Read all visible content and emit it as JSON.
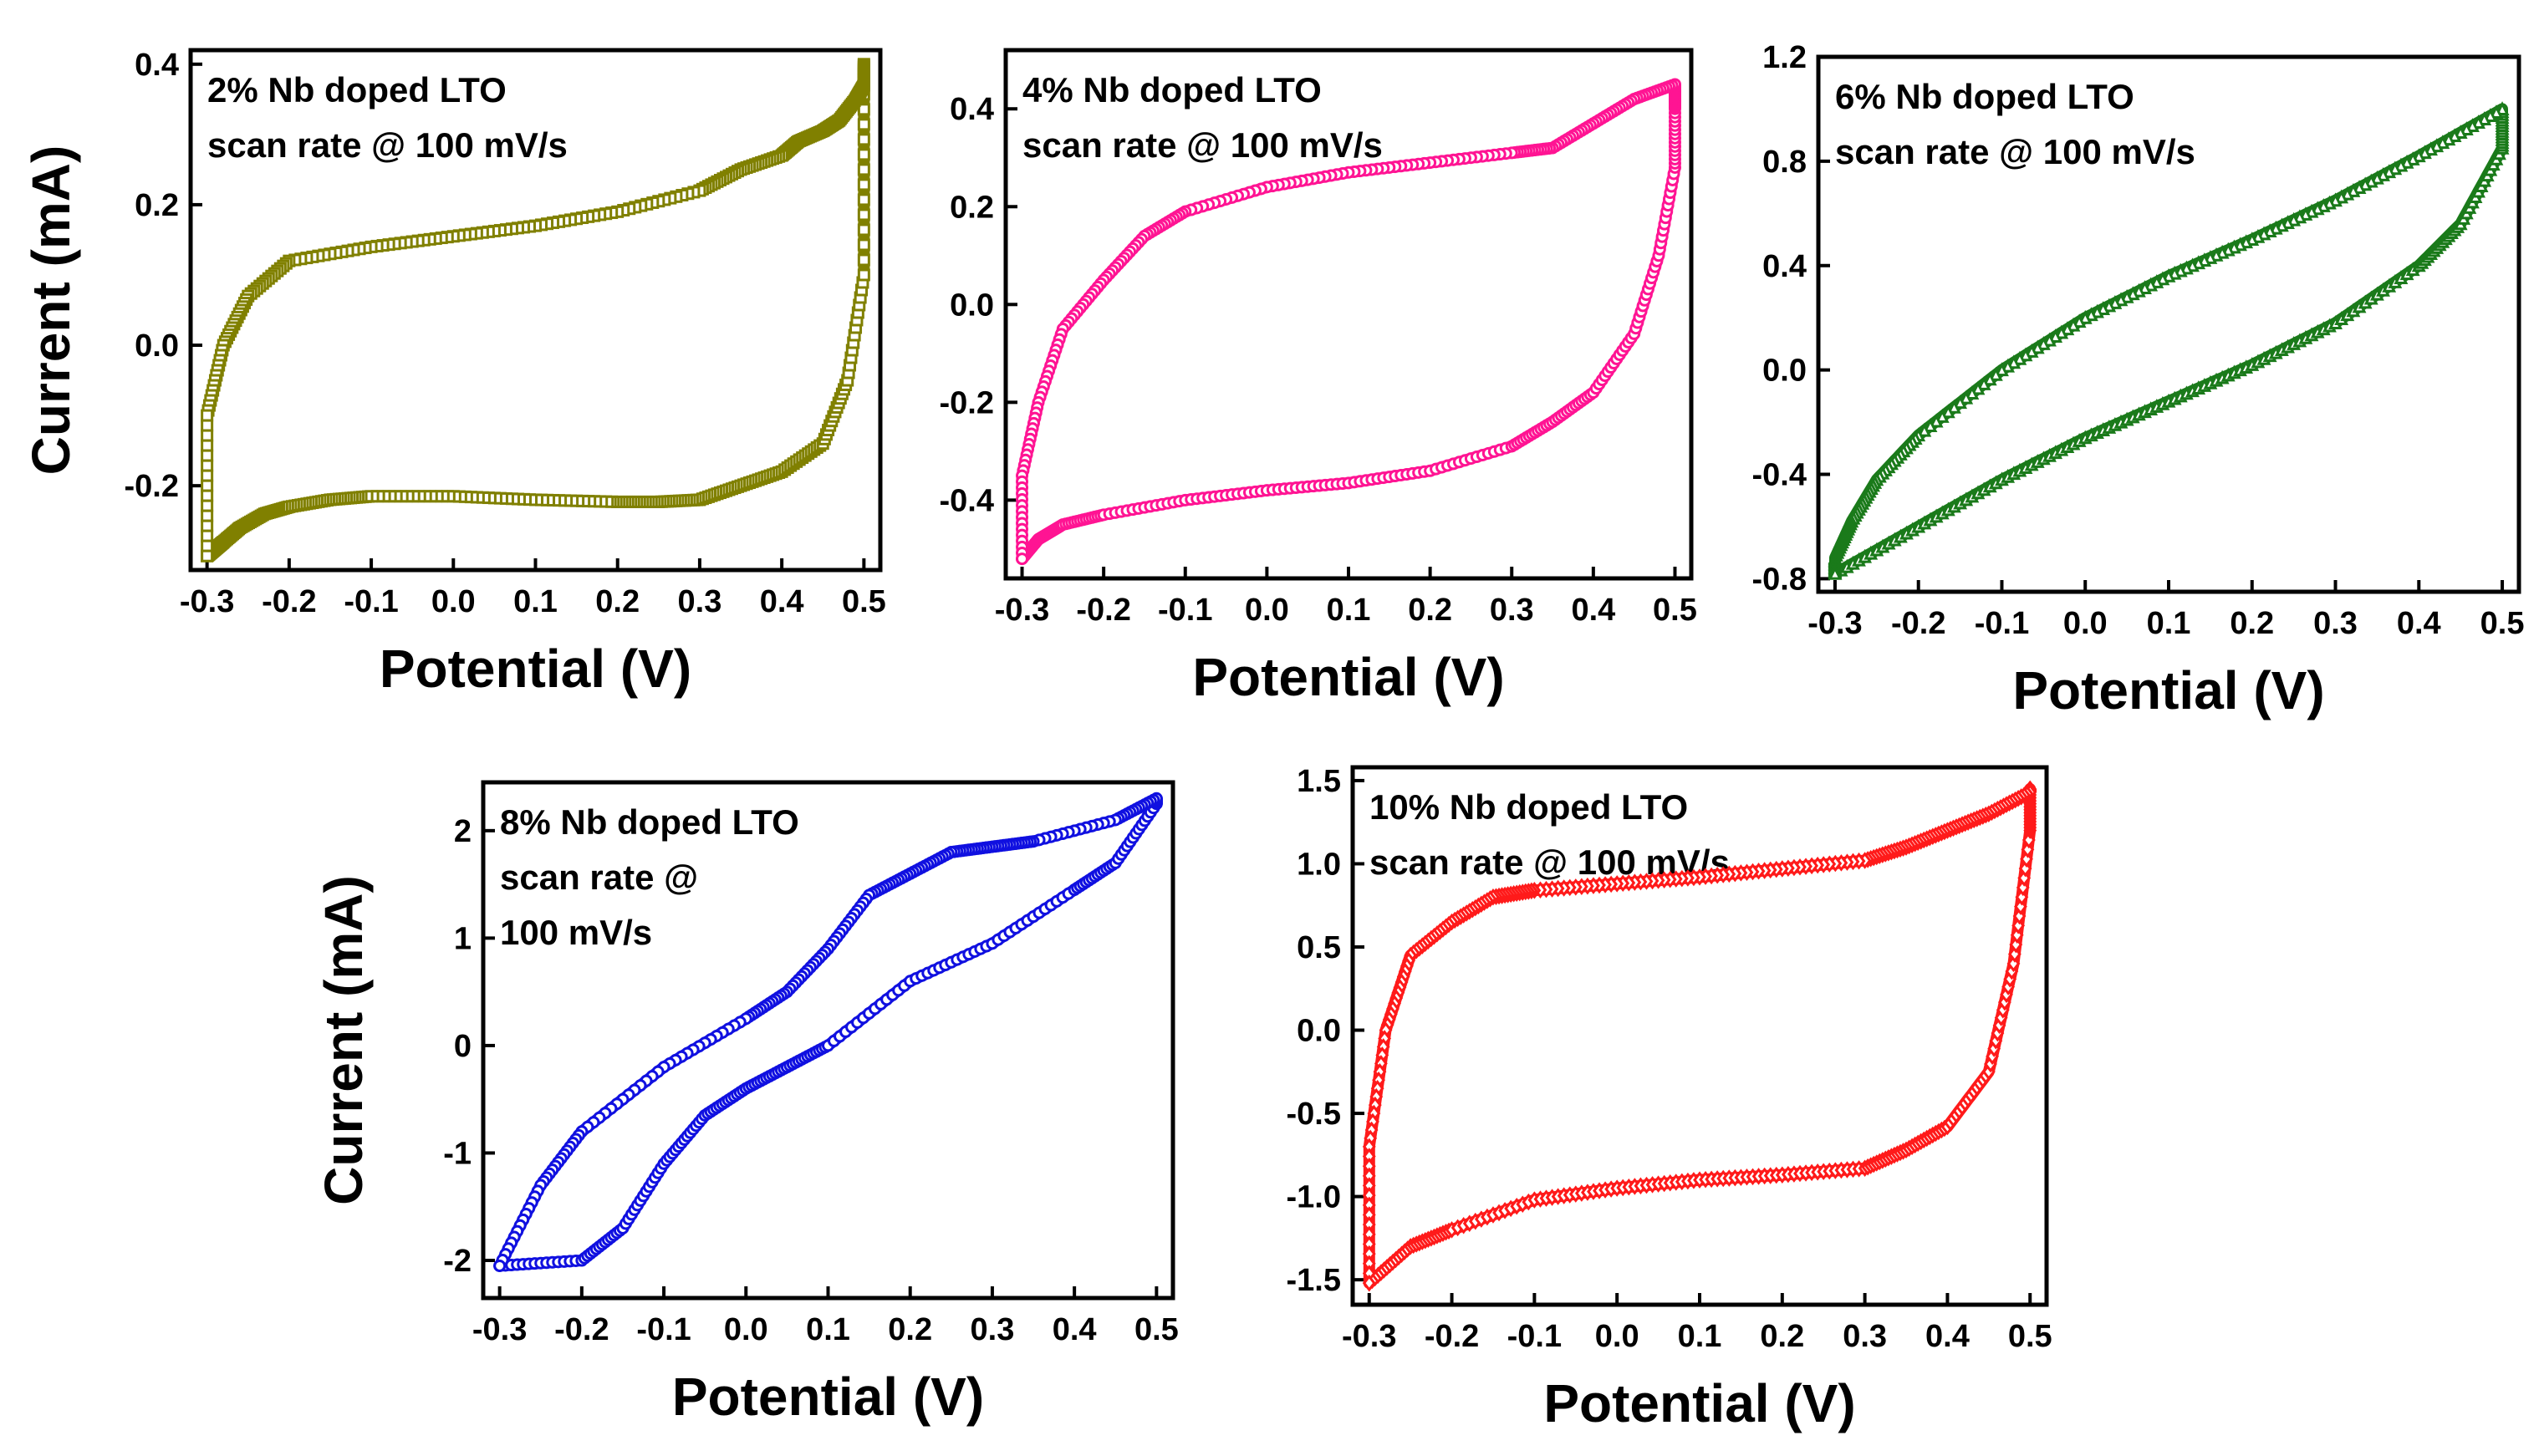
{
  "chart_data": [
    {
      "type": "line",
      "label_lines": [
        "2% Nb doped LTO",
        "scan rate @ 100 mV/s"
      ],
      "color": "#808000",
      "marker": "square",
      "xlabel": "Potential (V)",
      "ylabel": "Current (mA)",
      "show_ylabel": true,
      "xlim": [
        -0.32,
        0.52
      ],
      "ylim": [
        -0.32,
        0.42
      ],
      "xticks": [
        -0.3,
        -0.2,
        -0.1,
        0.0,
        0.1,
        0.2,
        0.3,
        0.4,
        0.5
      ],
      "xtick_labels": [
        "-0.3",
        "-0.2",
        "-0.1",
        "0.0",
        "0.1",
        "0.2",
        "0.3",
        "0.4",
        "0.5"
      ],
      "yticks": [
        -0.2,
        0.0,
        0.2,
        0.4
      ],
      "ytick_labels": [
        "-0.2",
        "0.0",
        "0.2",
        "0.4"
      ],
      "series": [
        {
          "name": "2% Nb doped LTO",
          "x": [
            -0.3,
            -0.29,
            -0.28,
            -0.26,
            -0.23,
            -0.2,
            -0.15,
            -0.1,
            0.0,
            0.1,
            0.2,
            0.25,
            0.3,
            0.35,
            0.4,
            0.45,
            0.48,
            0.5,
            0.5,
            0.5,
            0.49,
            0.47,
            0.45,
            0.42,
            0.4,
            0.35,
            0.3,
            0.2,
            0.1,
            0.0,
            -0.1,
            -0.2,
            -0.25,
            -0.28,
            -0.3,
            -0.3
          ],
          "y": [
            -0.3,
            -0.29,
            -0.28,
            -0.26,
            -0.24,
            -0.23,
            -0.22,
            -0.215,
            -0.215,
            -0.22,
            -0.223,
            -0.223,
            -0.22,
            -0.2,
            -0.18,
            -0.14,
            -0.05,
            0.1,
            0.4,
            0.37,
            0.35,
            0.32,
            0.305,
            0.29,
            0.27,
            0.25,
            0.22,
            0.19,
            0.17,
            0.155,
            0.14,
            0.12,
            0.07,
            0.0,
            -0.1,
            -0.3
          ]
        }
      ]
    },
    {
      "type": "line",
      "label_lines": [
        "4% Nb doped LTO",
        "scan rate @ 100 mV/s"
      ],
      "color": "#FF1493",
      "marker": "circle",
      "xlabel": "Potential (V)",
      "ylabel": "Current (mA)",
      "show_ylabel": false,
      "xlim": [
        -0.32,
        0.52
      ],
      "ylim": [
        -0.56,
        0.52
      ],
      "xticks": [
        -0.3,
        -0.2,
        -0.1,
        0.0,
        0.1,
        0.2,
        0.3,
        0.4,
        0.5
      ],
      "xtick_labels": [
        "-0.3",
        "-0.2",
        "-0.1",
        "0.0",
        "0.1",
        "0.2",
        "0.3",
        "0.4",
        "0.5"
      ],
      "yticks": [
        -0.4,
        -0.2,
        0.0,
        0.2,
        0.4
      ],
      "ytick_labels": [
        "-0.4",
        "-0.2",
        "0.0",
        "0.2",
        "0.4"
      ],
      "series": [
        {
          "name": "4% Nb doped LTO",
          "x": [
            -0.3,
            -0.28,
            -0.25,
            -0.2,
            -0.1,
            0.0,
            0.1,
            0.2,
            0.3,
            0.35,
            0.4,
            0.45,
            0.48,
            0.5,
            0.5,
            0.5,
            0.45,
            0.4,
            0.35,
            0.3,
            0.2,
            0.1,
            0.0,
            -0.1,
            -0.15,
            -0.2,
            -0.25,
            -0.28,
            -0.3,
            -0.3
          ],
          "y": [
            -0.52,
            -0.48,
            -0.45,
            -0.43,
            -0.4,
            -0.38,
            -0.365,
            -0.34,
            -0.29,
            -0.24,
            -0.18,
            -0.06,
            0.1,
            0.28,
            0.4,
            0.45,
            0.42,
            0.37,
            0.32,
            0.31,
            0.29,
            0.27,
            0.24,
            0.19,
            0.14,
            0.05,
            -0.05,
            -0.2,
            -0.35,
            -0.52
          ]
        }
      ]
    },
    {
      "type": "line",
      "label_lines": [
        "6% Nb doped LTO",
        "scan rate @ 100 mV/s"
      ],
      "color": "#1A7A1A",
      "marker": "triangle",
      "xlabel": "Potential (V)",
      "ylabel": "Current (mA)",
      "show_ylabel": false,
      "xlim": [
        -0.32,
        0.52
      ],
      "ylim": [
        -0.85,
        1.2
      ],
      "xticks": [
        -0.3,
        -0.2,
        -0.1,
        0.0,
        0.1,
        0.2,
        0.3,
        0.4,
        0.5
      ],
      "xtick_labels": [
        "-0.3",
        "-0.2",
        "-0.1",
        "0.0",
        "0.1",
        "0.2",
        "0.3",
        "0.4",
        "0.5"
      ],
      "yticks": [
        -0.8,
        -0.4,
        0.0,
        0.4,
        0.8,
        1.2
      ],
      "ytick_labels": [
        "-0.8",
        "-0.4",
        "0.0",
        "0.4",
        "0.8",
        "1.2"
      ],
      "series": [
        {
          "name": "6% Nb doped LTO",
          "x": [
            -0.3,
            -0.2,
            -0.1,
            0.0,
            0.1,
            0.2,
            0.3,
            0.4,
            0.45,
            0.5,
            0.5,
            0.4,
            0.3,
            0.2,
            0.1,
            0.0,
            -0.1,
            -0.2,
            -0.25,
            -0.28,
            -0.3,
            -0.3
          ],
          "y": [
            -0.78,
            -0.6,
            -0.42,
            -0.26,
            -0.12,
            0.02,
            0.18,
            0.4,
            0.56,
            0.85,
            1.0,
            0.82,
            0.65,
            0.5,
            0.36,
            0.2,
            0.0,
            -0.25,
            -0.42,
            -0.58,
            -0.72,
            -0.78
          ]
        }
      ]
    },
    {
      "type": "line",
      "label_lines": [
        "8% Nb doped LTO",
        "scan rate @",
        "100 mV/s"
      ],
      "color": "#1010E0",
      "marker": "circle",
      "xlabel": "Potential (V)",
      "ylabel": "Current (mA)",
      "show_ylabel": true,
      "xlim": [
        -0.32,
        0.52
      ],
      "ylim": [
        -2.35,
        2.45
      ],
      "xticks": [
        -0.3,
        -0.2,
        -0.1,
        0.0,
        0.1,
        0.2,
        0.3,
        0.4,
        0.5
      ],
      "xtick_labels": [
        "-0.3",
        "-0.2",
        "-0.1",
        "0.0",
        "0.1",
        "0.2",
        "0.3",
        "0.4",
        "0.5"
      ],
      "yticks": [
        -2,
        -1,
        0,
        1,
        2
      ],
      "ytick_labels": [
        "-2",
        "-1",
        "0",
        "1",
        "2"
      ],
      "series": [
        {
          "name": "8% Nb doped LTO",
          "x": [
            -0.3,
            -0.2,
            -0.15,
            -0.1,
            -0.05,
            0.0,
            0.05,
            0.1,
            0.2,
            0.3,
            0.4,
            0.45,
            0.5,
            0.5,
            0.45,
            0.35,
            0.3,
            0.25,
            0.2,
            0.15,
            0.1,
            0.05,
            0.0,
            -0.1,
            -0.2,
            -0.25,
            -0.3
          ],
          "y": [
            -2.05,
            -2.0,
            -1.7,
            -1.1,
            -0.65,
            -0.4,
            -0.2,
            0.0,
            0.6,
            0.95,
            1.45,
            1.7,
            2.25,
            2.3,
            2.1,
            1.9,
            1.85,
            1.8,
            1.6,
            1.4,
            0.9,
            0.5,
            0.25,
            -0.2,
            -0.8,
            -1.3,
            -2.05
          ]
        }
      ]
    },
    {
      "type": "line",
      "label_lines": [
        "10% Nb doped LTO",
        "scan rate @ 100 mV/s"
      ],
      "color": "#FF1A1A",
      "marker": "diamond",
      "xlabel": "Potential (V)",
      "ylabel": "Current (mA)",
      "show_ylabel": false,
      "xlim": [
        -0.32,
        0.52
      ],
      "ylim": [
        -1.65,
        1.58
      ],
      "xticks": [
        -0.3,
        -0.2,
        -0.1,
        0.0,
        0.1,
        0.2,
        0.3,
        0.4,
        0.5
      ],
      "xtick_labels": [
        "-0.3",
        "-0.2",
        "-0.1",
        "0.0",
        "0.1",
        "0.2",
        "0.3",
        "0.4",
        "0.5"
      ],
      "yticks": [
        -1.5,
        -1.0,
        -0.5,
        0.0,
        0.5,
        1.0,
        1.5
      ],
      "ytick_labels": [
        "-1.5",
        "-1.0",
        "-0.5",
        "0.0",
        "0.5",
        "1.0",
        "1.5"
      ],
      "series": [
        {
          "name": "10% Nb doped LTO",
          "x": [
            -0.3,
            -0.25,
            -0.2,
            -0.1,
            0.0,
            0.1,
            0.2,
            0.3,
            0.35,
            0.4,
            0.45,
            0.48,
            0.5,
            0.5,
            0.5,
            0.45,
            0.4,
            0.35,
            0.3,
            0.2,
            0.1,
            0.0,
            -0.1,
            -0.15,
            -0.2,
            -0.25,
            -0.28,
            -0.3,
            -0.3
          ],
          "y": [
            -1.52,
            -1.3,
            -1.2,
            -1.02,
            -0.95,
            -0.9,
            -0.87,
            -0.83,
            -0.72,
            -0.58,
            -0.25,
            0.4,
            1.2,
            1.45,
            1.43,
            1.3,
            1.2,
            1.1,
            1.02,
            0.97,
            0.92,
            0.88,
            0.84,
            0.8,
            0.65,
            0.45,
            0.0,
            -0.7,
            -1.52
          ]
        }
      ]
    }
  ]
}
